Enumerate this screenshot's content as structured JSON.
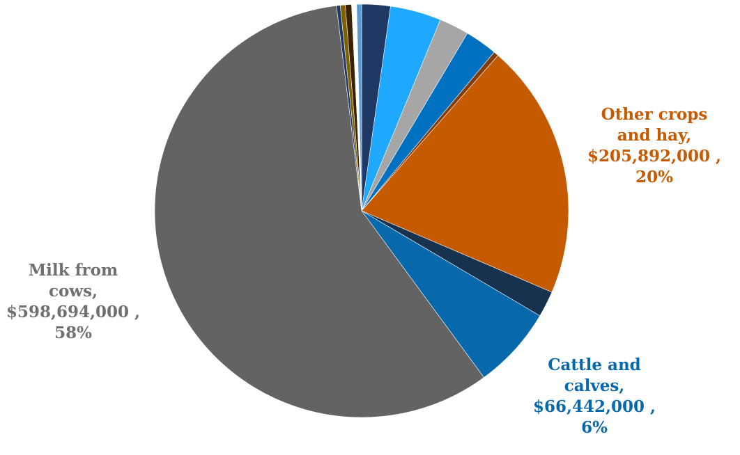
{
  "chart_data": {
    "type": "pie",
    "title": "",
    "slices": [
      {
        "value": 23000000,
        "color": "#203864"
      },
      {
        "value": 41000000,
        "color": "#1fa8ff"
      },
      {
        "value": 24000000,
        "color": "#a6a6a6"
      },
      {
        "value": 26000000,
        "color": "#0070c0"
      },
      {
        "value": 4000000,
        "color": "#843c0c"
      },
      {
        "label_lines": [
          "Other crops",
          "and hay,",
          "$205,892,000 ,",
          "20%"
        ],
        "value": 205892000,
        "color": "#c55a00",
        "label_color": "#c55a00"
      },
      {
        "value": 21000000,
        "color": "#16324f"
      },
      {
        "label_lines": [
          "Cattle and",
          "calves,",
          "$66,442,000 ,",
          "6%"
        ],
        "value": 66442000,
        "color": "#0868ac",
        "label_color": "#0868ac"
      },
      {
        "label_lines": [
          "Milk from",
          "cows,",
          "$598,694,000 ,",
          "58%"
        ],
        "value": 598694000,
        "color": "#636363",
        "label_color": "#707070"
      },
      {
        "value": 3000000,
        "color": "#1f3864"
      },
      {
        "value": 4000000,
        "color": "#7f6000"
      },
      {
        "value": 5000000,
        "color": "#3a2200"
      },
      {
        "value": 4000000,
        "color": "#ffffff"
      },
      {
        "value": 4000000,
        "color": "#5b9bd5"
      }
    ]
  }
}
